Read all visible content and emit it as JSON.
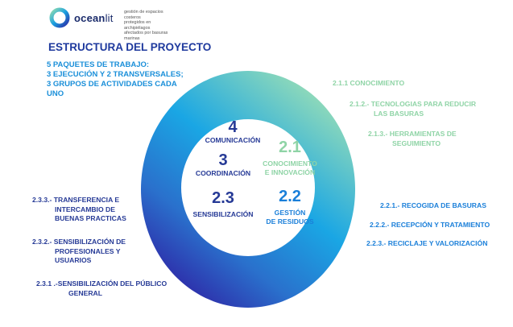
{
  "logo": {
    "name_bold": "ocean",
    "name_light": "lit",
    "tagline": [
      "gestión de espacios costeros",
      "protegidos en archipiélagos",
      "afectados por basuras marinas"
    ]
  },
  "title": "ESTRUCTURA DEL PROYECTO",
  "packages_text": [
    "5 PAQUETES DE TRABAJO:",
    "3 EJECUCIÓN Y 2 TRANSVERSALES;",
    "3 GRUPOS DE ACTIVIDADES CADA",
    "UNO"
  ],
  "colors": {
    "title": "#1f3a9e",
    "packages": "#1a8fd9",
    "ring_top": "#8fdcb0",
    "ring_mid": "#1aa0e0",
    "ring_bottom": "#2a2fa8",
    "green_text": "#8fd4a6",
    "blue_text": "#1a7fd9",
    "navy_text": "#263a96"
  },
  "inner": {
    "wp4": {
      "number": "4",
      "label": "COMUNICACIÓN"
    },
    "wp3": {
      "number": "3",
      "label": "COORDINACIÓN"
    },
    "wp21": {
      "number": "2.1",
      "label": [
        "CONOCIMIENTO",
        "E INNOVACIÓN"
      ]
    },
    "wp23": {
      "number": "2.3",
      "label": "SENSIBILIZACIÓN"
    },
    "wp22": {
      "number": "2.2",
      "label": [
        "GESTIÓN",
        "DE RESIDUOS"
      ]
    }
  },
  "right_labels": {
    "a211": "2.1.1 CONOCIMIENTO",
    "a212": [
      "2.1.2.- TECNOLOGIAS PARA REDUCIR",
      "LAS BASURAS"
    ],
    "a213": [
      "2.1.3.- HERRAMIENTAS DE",
      "SEGUIMIENTO"
    ],
    "a221": "2.2.1.- RECOGIDA DE BASURAS",
    "a222": "2.2.2.- RECEPCIÓN Y TRATAMIENTO",
    "a223": "2.2.3.- RECICLAJE Y VALORIZACIÓN"
  },
  "left_labels": {
    "a233": [
      "2.3.3.- TRANSFERENCIA E",
      "INTERCAMBIO DE",
      "BUENAS PRACTICAS"
    ],
    "a232": [
      "2.3.2.- SENSIBILIZACIÓN DE",
      "PROFESIONALES Y",
      "USUARIOS"
    ],
    "a231": [
      "2.3.1 .-SENSIBILIZACIÓN DEL PÚBLICO",
      "GENERAL"
    ]
  }
}
